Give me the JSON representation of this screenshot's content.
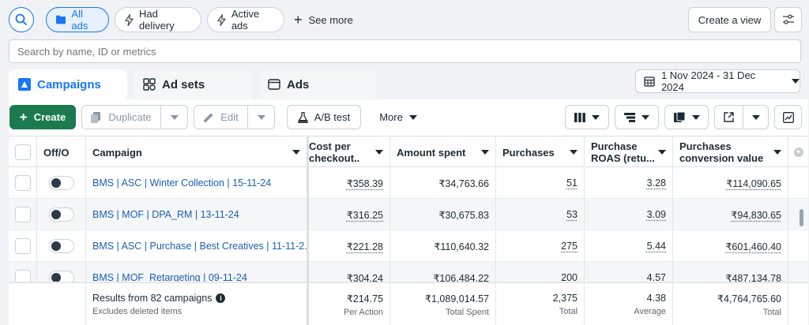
{
  "filters": {
    "all_ads": "All ads",
    "had_delivery": "Had delivery",
    "active_ads": "Active ads",
    "see_more": "See more",
    "create_view": "Create a view"
  },
  "search": {
    "placeholder": "Search by name, ID or metrics"
  },
  "tabs": [
    {
      "label": "Campaigns",
      "active": true
    },
    {
      "label": "Ad sets",
      "active": false
    },
    {
      "label": "Ads",
      "active": false
    }
  ],
  "date_range": "1 Nov 2024 - 31 Dec 2024",
  "toolbar": {
    "create": "Create",
    "duplicate": "Duplicate",
    "edit": "Edit",
    "ab_test": "A/B test",
    "more": "More"
  },
  "table": {
    "headers": {
      "offon": "Off/O",
      "campaign": "Campaign",
      "cost_per_checkout": "Cost per checkout...",
      "amount_spent": "Amount spent",
      "purchases": "Purchases",
      "roas": "Purchase ROAS (retu...",
      "conv_value": "Purchases conversion value"
    },
    "rows": [
      {
        "campaign": "BMS | ASC | Winter Collection | 15-11-24",
        "cost": "₹358.39",
        "spent": "₹34,763.66",
        "purchases": "51",
        "roas": "3.28",
        "value": "₹114,090.65"
      },
      {
        "campaign": "BMS | MOF | DPA_RM | 13-11-24",
        "cost": "₹316.25",
        "spent": "₹30,675.83",
        "purchases": "53",
        "roas": "3.09",
        "value": "₹94,830.65"
      },
      {
        "campaign": "BMS | ASC | Purchase | Best Creatives | 11-11-2...",
        "cost": "₹221.28",
        "spent": "₹110,640.32",
        "purchases": "275",
        "roas": "5.44",
        "value": "₹601,460.40"
      },
      {
        "campaign": "BMS | MOF_Retargeting | 09-11-24",
        "cost": "₹304.24",
        "spent": "₹106,484.22",
        "purchases": "200",
        "roas": "4.57",
        "value": "₹487,134.78"
      }
    ],
    "footer": {
      "results": "Results from 82 campaigns",
      "excludes": "Excludes deleted items",
      "cost": "₹214.75",
      "cost_sub": "Per Action",
      "spent": "₹1,089,014.57",
      "spent_sub": "Total Spent",
      "purchases": "2,375",
      "purchases_sub": "Total",
      "roas": "4.38",
      "roas_sub": "Average",
      "value": "₹4,764,765.60",
      "value_sub": "Total"
    }
  },
  "colors": {
    "accent": "#1877f2",
    "create_button": "#1b7a4e",
    "link": "#1a5fb4"
  }
}
